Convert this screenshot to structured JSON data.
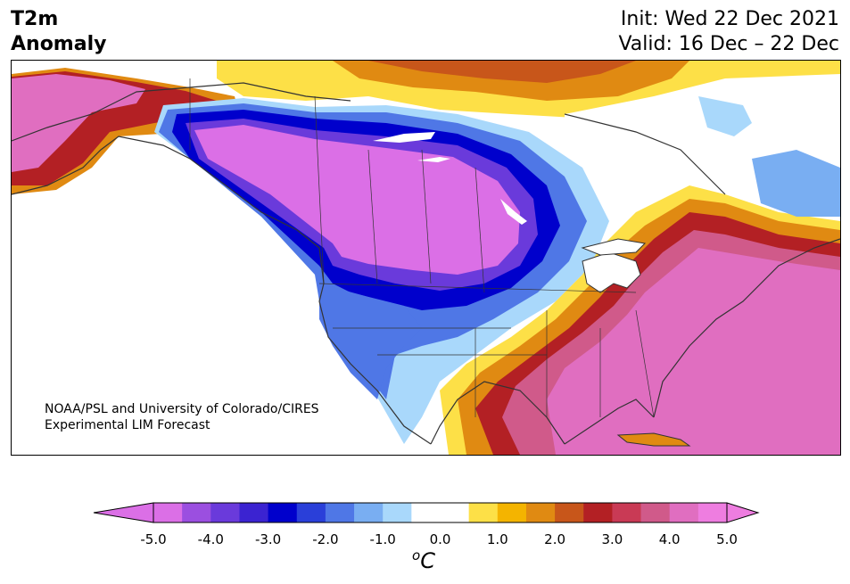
{
  "title": {
    "line1": "T2m",
    "line2": "Anomaly"
  },
  "init": {
    "line1": "Init: Wed 22 Dec 2021",
    "line2": "Valid: 16 Dec – 22 Dec"
  },
  "credit": {
    "line1": "NOAA/PSL and University of Colorado/CIRES",
    "line2": "Experimental LIM Forecast"
  },
  "colorbar": {
    "ticks": [
      "-5.0",
      "-4.0",
      "-3.0",
      "-2.0",
      "-1.0",
      "0.0",
      "1.0",
      "2.0",
      "3.0",
      "4.0",
      "5.0"
    ],
    "unit_sup": "o",
    "unit_main": "C",
    "colors": [
      "#db6fe6",
      "#9b4fe0",
      "#6a3adb",
      "#3b23d1",
      "#0000cc",
      "#2a3fd9",
      "#4f77e6",
      "#79aef2",
      "#a9d8fb",
      "#ffffff",
      "#ffffff",
      "#fde047",
      "#f4b400",
      "#e08a12",
      "#c8561a",
      "#b32024",
      "#c93a55",
      "#d05a8a",
      "#e06ec0",
      "#ee7de0"
    ],
    "under_color": "#db6fe6",
    "over_color": "#ee7de0"
  }
}
